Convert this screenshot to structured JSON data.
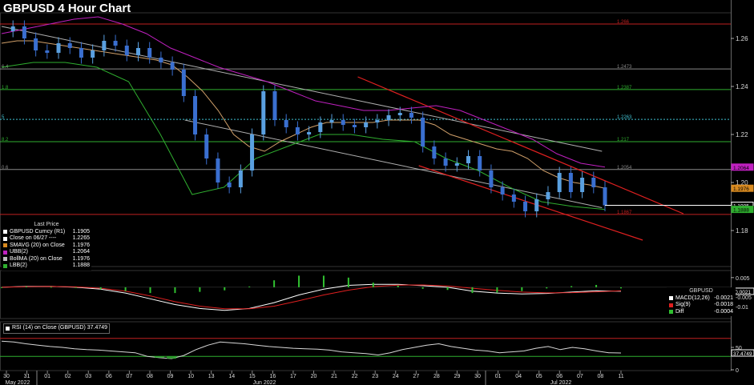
{
  "title": "GBPUSD 4 Hour Chart",
  "colors": {
    "bg": "#000000",
    "up": "#5aa0e0",
    "down": "#3a6fd0",
    "sma": "#d1a06a",
    "ubb": "#c020c0",
    "lbb": "#2fae2f",
    "fib": "#2fae2f",
    "fib_top": "#c02020",
    "fib_mid": "#888888",
    "fib_cyan": "#40c0d0",
    "trend": "#e02020",
    "trend_gray": "#b0b0b0",
    "macd_hist": "#30c030",
    "macd_fill": "#888888",
    "macd_line": "#ffffff",
    "sig_line": "#e02020",
    "rsi_line": "#d8d8d8",
    "rsi_level": "#2fae2f",
    "rsi_level_top": "#c02020"
  },
  "chart_data": {
    "type": "line",
    "instrument": "GBPUSD",
    "timeframe": "4 Hour",
    "x_ticks": [
      "30",
      "31",
      "01",
      "02",
      "03",
      "06",
      "07",
      "08",
      "09",
      "10",
      "13",
      "14",
      "15",
      "16",
      "17",
      "20",
      "21",
      "22",
      "23",
      "24",
      "27",
      "28",
      "29",
      "30",
      "01",
      "04",
      "05",
      "06",
      "07",
      "08",
      "11"
    ],
    "month_labels": [
      "May 2022",
      "Jun 2022",
      "Jul 2022"
    ],
    "price_axis": {
      "ylim": [
        1.165,
        1.27
      ],
      "ticks": [
        1.18,
        1.2,
        1.22,
        1.24,
        1.26
      ]
    },
    "price_close_approx": [
      1.263,
      1.265,
      1.26,
      1.255,
      1.254,
      1.258,
      1.256,
      1.252,
      1.255,
      1.259,
      1.257,
      1.253,
      1.256,
      1.252,
      1.25,
      1.247,
      1.236,
      1.22,
      1.21,
      1.2,
      1.198,
      1.205,
      1.22,
      1.238,
      1.226,
      1.223,
      1.22,
      1.221,
      1.225,
      1.226,
      1.224,
      1.223,
      1.225,
      1.226,
      1.228,
      1.229,
      1.227,
      1.215,
      1.21,
      1.207,
      1.208,
      1.211,
      1.205,
      1.198,
      1.195,
      1.192,
      1.188,
      1.193,
      1.196,
      1.204,
      1.196,
      1.202,
      1.198,
      1.1905
    ],
    "sma20_approx": [
      1.258,
      1.259,
      1.259,
      1.258,
      1.257,
      1.256,
      1.255,
      1.254,
      1.253,
      1.252,
      1.251,
      1.249,
      1.244,
      1.238,
      1.23,
      1.22,
      1.215,
      1.213,
      1.217,
      1.22,
      1.223,
      1.225,
      1.225,
      1.225,
      1.225,
      1.226,
      1.226,
      1.226,
      1.224,
      1.22,
      1.218,
      1.216,
      1.214,
      1.213,
      1.21,
      1.205,
      1.202,
      1.2,
      1.199,
      1.1976
    ],
    "ubb_approx": [
      1.262,
      1.264,
      1.266,
      1.268,
      1.269,
      1.266,
      1.262,
      1.256,
      1.252,
      1.248,
      1.245,
      1.242,
      1.238,
      1.234,
      1.232,
      1.23,
      1.23,
      1.231,
      1.232,
      1.23,
      1.226,
      1.222,
      1.218,
      1.212,
      1.208,
      1.2064
    ],
    "lbb_approx": [
      1.248,
      1.25,
      1.25,
      1.248,
      1.242,
      1.22,
      1.195,
      1.198,
      1.21,
      1.215,
      1.22,
      1.22,
      1.218,
      1.217,
      1.21,
      1.205,
      1.198,
      1.192,
      1.19,
      1.1888
    ],
    "fib_levels": [
      {
        "label": "1.266",
        "value": 1.266,
        "pct": "",
        "color": "#c02020"
      },
      {
        "label": "1.2473",
        "value": 1.2473,
        "pct": "6.4",
        "color": "#888888"
      },
      {
        "label": "1.2387",
        "value": 1.2387,
        "pct": "1.8",
        "color": "#2fae2f"
      },
      {
        "label": "1.2263",
        "value": 1.2263,
        "pct": "5",
        "color": "#40c0d0"
      },
      {
        "label": "1.217",
        "value": 1.217,
        "pct": "8.2",
        "color": "#2fae2f"
      },
      {
        "label": "1.2054",
        "value": 1.2054,
        "pct": "0.6",
        "color": "#888888"
      },
      {
        "label": "1.1867",
        "value": 1.1867,
        "pct": "",
        "color": "#c02020"
      }
    ],
    "price_labels": [
      {
        "text": "1.2064",
        "value": 1.2064,
        "color": "#c020c0"
      },
      {
        "text": "1.1976",
        "value": 1.1976,
        "color": "#d88a20"
      },
      {
        "text": "1.1905",
        "value": 1.1905,
        "color": "#ffffff"
      },
      {
        "text": "1.1888",
        "value": 1.1888,
        "color": "#2fae2f"
      }
    ],
    "macd": {
      "ylim": [
        -0.015,
        0.007
      ],
      "ticks": [
        0.005,
        -0.005,
        -0.01
      ],
      "current_label": "-0.0021",
      "macd_approx": [
        0.0,
        0.0005,
        0.0005,
        0.0,
        -0.001,
        -0.003,
        -0.006,
        -0.009,
        -0.011,
        -0.012,
        -0.011,
        -0.008,
        -0.004,
        -0.001,
        0.001,
        0.0015,
        0.0015,
        0.0008,
        0.0,
        -0.002,
        -0.003,
        -0.0035,
        -0.0032,
        -0.0025,
        -0.0018,
        -0.0021
      ],
      "signal_approx": [
        0.0,
        0.0003,
        0.0004,
        0.0002,
        -0.0005,
        -0.002,
        -0.0045,
        -0.0075,
        -0.0098,
        -0.0112,
        -0.0112,
        -0.0098,
        -0.007,
        -0.004,
        -0.0015,
        0.0003,
        0.0011,
        0.0012,
        0.0007,
        -0.0005,
        -0.0016,
        -0.0025,
        -0.0029,
        -0.0028,
        -0.0024,
        -0.0018
      ]
    },
    "rsi": {
      "ylim": [
        0,
        100
      ],
      "ticks": [
        50,
        0
      ],
      "current_label": "37.4749",
      "levels": [
        70,
        30
      ],
      "values_approx": [
        64,
        62,
        58,
        55,
        52,
        50,
        47,
        45,
        44,
        42,
        40,
        38,
        30,
        27,
        25,
        32,
        45,
        55,
        62,
        60,
        58,
        55,
        52,
        50,
        48,
        47,
        46,
        44,
        40,
        38,
        36,
        33,
        38,
        45,
        50,
        55,
        58,
        52,
        48,
        44,
        42,
        38,
        40,
        42,
        48,
        52,
        45,
        50,
        47,
        42,
        38,
        37.47
      ]
    }
  },
  "legend_main": {
    "heading": "Last Price",
    "rows": [
      {
        "label": "GBPUSD Curncy  (R1)",
        "value": "1.1905",
        "color": "#ffffff"
      },
      {
        "label": "Close on 06/27  ----",
        "value": "1.2265",
        "color": "#ffffff"
      },
      {
        "label": "SMAVG (20)  on Close",
        "value": "1.1976",
        "color": "#d88a20"
      },
      {
        "label": "UBB(2)",
        "value": "1.2064",
        "color": "#c020c0"
      },
      {
        "label": "BollMA (20)  on Close",
        "value": "1.1976",
        "color": "#bbbbbb"
      },
      {
        "label": "LBB(2)",
        "value": "1.1888",
        "color": "#2fae2f"
      }
    ]
  },
  "legend_macd": {
    "heading": "GBPUSD",
    "rows": [
      {
        "label": "MACD(12,26)",
        "value": "-0.0021",
        "color": "#ffffff"
      },
      {
        "label": "Sig(9)",
        "value": "-0.0018",
        "color": "#e02020"
      },
      {
        "label": "Diff",
        "value": "-0.0004",
        "color": "#30c030"
      }
    ]
  },
  "legend_rsi": {
    "text": "RSI (14)  on Close (GBPUSD) 37.4749",
    "color": "#ffffff"
  }
}
